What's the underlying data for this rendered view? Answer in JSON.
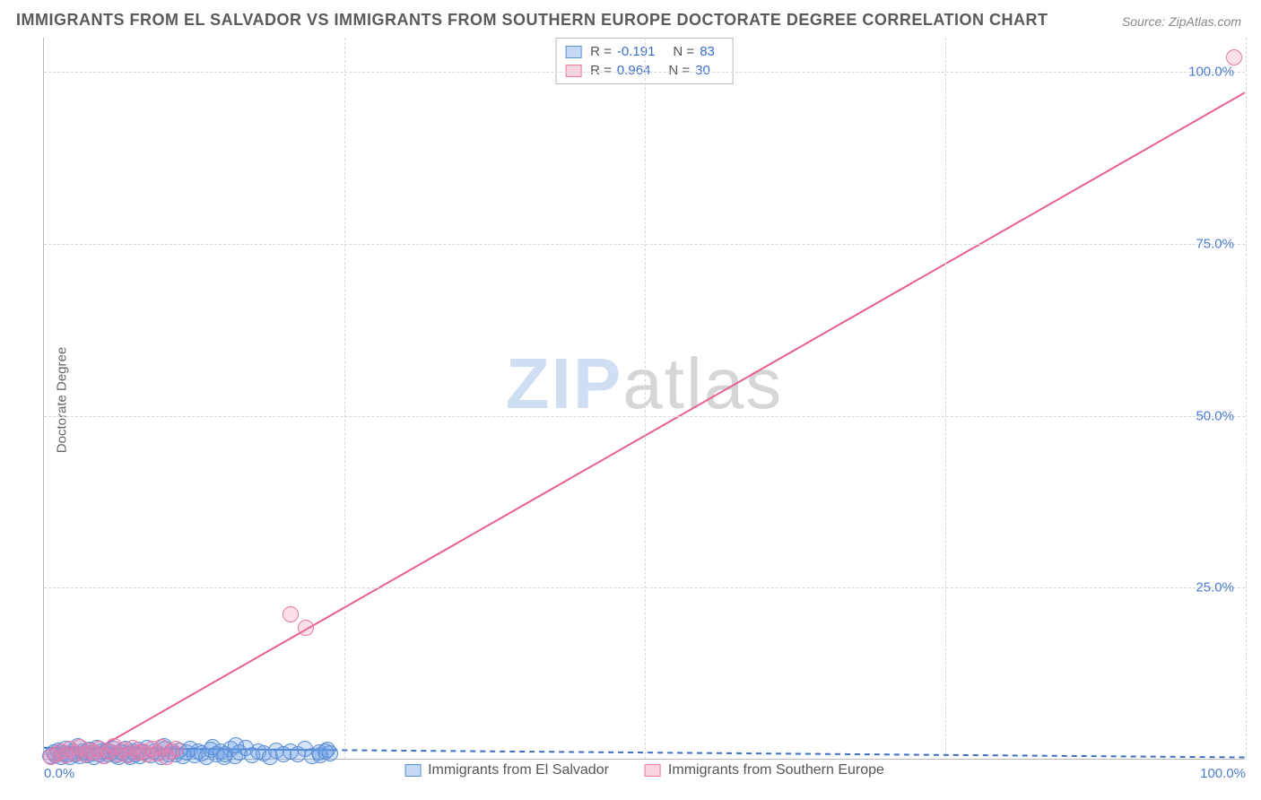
{
  "title": "IMMIGRANTS FROM EL SALVADOR VS IMMIGRANTS FROM SOUTHERN EUROPE DOCTORATE DEGREE CORRELATION CHART",
  "source_label": "Source: ZipAtlas.com",
  "ylabel": "Doctorate Degree",
  "watermark": {
    "part1": "ZIP",
    "part2": "atlas"
  },
  "chart": {
    "type": "scatter",
    "background_color": "#ffffff",
    "grid_color": "#d8d8d8",
    "axis_color": "#bbbbbb",
    "xlim": [
      0,
      100
    ],
    "ylim": [
      0,
      105
    ],
    "yticks": [
      {
        "v": 25,
        "label": "25.0%"
      },
      {
        "v": 50,
        "label": "50.0%"
      },
      {
        "v": 75,
        "label": "75.0%"
      },
      {
        "v": 100,
        "label": "100.0%"
      }
    ],
    "xticks_major": [
      0,
      25,
      50,
      75,
      100
    ],
    "xticks_labels": [
      {
        "v": 0,
        "label": "0.0%",
        "align": "left"
      },
      {
        "v": 100,
        "label": "100.0%",
        "align": "right"
      }
    ],
    "series": [
      {
        "key": "el_salvador",
        "label": "Immigrants from El Salvador",
        "color_fill": "rgba(110,160,230,0.30)",
        "color_stroke": "#5b8fd6",
        "marker_radius": 9,
        "R": "-0.191",
        "N": "83",
        "trend": {
          "x1": 0,
          "y1": 1.6,
          "x2": 100,
          "y2": 0.2,
          "stroke": "#3f6fc2",
          "width": 2,
          "dash": "6 5",
          "solid_until_x": 24
        },
        "points": [
          [
            0.5,
            0.4
          ],
          [
            0.8,
            0.9
          ],
          [
            1.0,
            0.5
          ],
          [
            1.2,
            1.2
          ],
          [
            1.4,
            0.3
          ],
          [
            1.6,
            0.8
          ],
          [
            1.8,
            1.5
          ],
          [
            2.0,
            0.6
          ],
          [
            2.2,
            0.2
          ],
          [
            2.4,
            1.0
          ],
          [
            2.6,
            0.7
          ],
          [
            2.8,
            1.8
          ],
          [
            3.0,
            0.4
          ],
          [
            3.2,
            1.1
          ],
          [
            3.4,
            0.9
          ],
          [
            3.6,
            0.5
          ],
          [
            3.8,
            1.3
          ],
          [
            4.0,
            0.8
          ],
          [
            4.2,
            0.3
          ],
          [
            4.4,
            1.6
          ],
          [
            4.6,
            0.6
          ],
          [
            4.8,
            1.0
          ],
          [
            5.0,
            0.4
          ],
          [
            5.2,
            1.2
          ],
          [
            5.4,
            0.7
          ],
          [
            5.6,
            0.9
          ],
          [
            5.8,
            1.5
          ],
          [
            6.0,
            0.5
          ],
          [
            6.2,
            0.3
          ],
          [
            6.4,
            1.1
          ],
          [
            6.6,
            0.8
          ],
          [
            6.8,
            1.4
          ],
          [
            7.0,
            0.6
          ],
          [
            7.2,
            0.2
          ],
          [
            7.4,
            1.0
          ],
          [
            7.6,
            0.7
          ],
          [
            7.8,
            1.3
          ],
          [
            8.0,
            0.4
          ],
          [
            8.3,
            0.9
          ],
          [
            8.6,
            1.6
          ],
          [
            8.9,
            0.5
          ],
          [
            9.2,
            1.1
          ],
          [
            9.5,
            0.8
          ],
          [
            9.8,
            0.3
          ],
          [
            10.1,
            1.4
          ],
          [
            10.4,
            0.6
          ],
          [
            10.7,
            1.0
          ],
          [
            11.0,
            0.7
          ],
          [
            11.3,
            1.2
          ],
          [
            11.6,
            0.4
          ],
          [
            11.9,
            0.9
          ],
          [
            12.2,
            1.5
          ],
          [
            12.5,
            0.5
          ],
          [
            12.8,
            1.1
          ],
          [
            13.1,
            0.8
          ],
          [
            13.5,
            0.3
          ],
          [
            13.9,
            1.3
          ],
          [
            14.3,
            0.6
          ],
          [
            14.7,
            1.0
          ],
          [
            15.1,
            0.7
          ],
          [
            15.5,
            1.4
          ],
          [
            15.9,
            0.4
          ],
          [
            16.3,
            0.9
          ],
          [
            16.8,
            1.6
          ],
          [
            17.3,
            0.5
          ],
          [
            17.8,
            1.1
          ],
          [
            18.3,
            0.8
          ],
          [
            18.8,
            0.3
          ],
          [
            19.3,
            1.2
          ],
          [
            19.9,
            0.6
          ],
          [
            20.5,
            1.0
          ],
          [
            21.1,
            0.7
          ],
          [
            21.7,
            1.5
          ],
          [
            22.3,
            0.4
          ],
          [
            22.9,
            0.9
          ],
          [
            23.6,
            1.3
          ],
          [
            23.0,
            0.5
          ],
          [
            23.4,
            1.1
          ],
          [
            23.8,
            0.8
          ],
          [
            14.0,
            1.7
          ],
          [
            15.0,
            0.2
          ],
          [
            16.0,
            1.9
          ],
          [
            10.0,
            1.8
          ]
        ]
      },
      {
        "key": "southern_europe",
        "label": "Immigrants from Southern Europe",
        "color_fill": "rgba(240,130,170,0.25)",
        "color_stroke": "#e77aa8",
        "marker_radius": 9,
        "R": "0.964",
        "N": "30",
        "trend": {
          "x1": 3,
          "y1": 0,
          "x2": 100,
          "y2": 97,
          "stroke": "#e85f96",
          "width": 2,
          "dash": "",
          "solid_until_x": 100
        },
        "points": [
          [
            0.6,
            0.3
          ],
          [
            1.0,
            0.7
          ],
          [
            1.4,
            1.1
          ],
          [
            1.8,
            0.5
          ],
          [
            2.2,
            1.4
          ],
          [
            2.6,
            0.8
          ],
          [
            3.0,
            1.7
          ],
          [
            3.4,
            0.6
          ],
          [
            3.8,
            1.2
          ],
          [
            4.2,
            0.9
          ],
          [
            4.6,
            1.5
          ],
          [
            5.0,
            0.4
          ],
          [
            5.4,
            1.0
          ],
          [
            5.8,
            1.8
          ],
          [
            6.2,
            0.7
          ],
          [
            6.6,
            1.3
          ],
          [
            7.0,
            0.5
          ],
          [
            7.4,
            1.6
          ],
          [
            7.8,
            0.9
          ],
          [
            8.2,
            1.1
          ],
          [
            8.6,
            0.6
          ],
          [
            9.0,
            1.4
          ],
          [
            9.4,
            0.8
          ],
          [
            9.8,
            1.7
          ],
          [
            10.2,
            0.3
          ],
          [
            10.6,
            1.0
          ],
          [
            11.0,
            1.5
          ],
          [
            20.5,
            21.0
          ],
          [
            21.8,
            19.0
          ],
          [
            99.0,
            102.0
          ]
        ]
      }
    ]
  },
  "colors": {
    "title": "#5a5a5a",
    "source": "#888888",
    "tick_label": "#4a7bd0",
    "stats_label": "#555555",
    "stats_value": "#3d6fc9"
  }
}
